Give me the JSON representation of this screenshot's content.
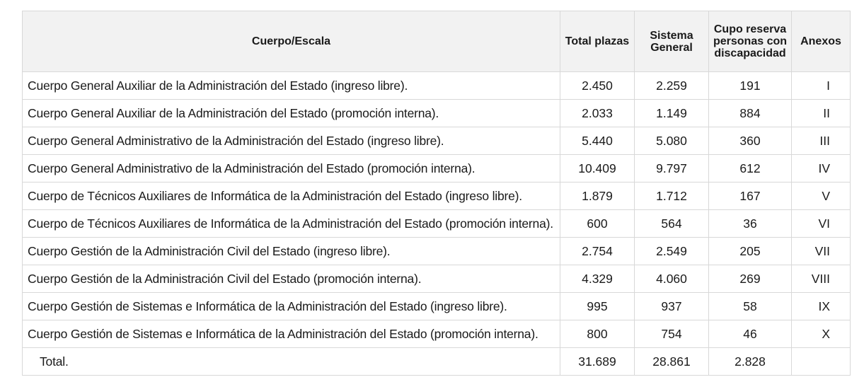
{
  "table": {
    "headers": {
      "cuerpo": "Cuerpo/Escala",
      "total": "Total plazas",
      "sistema": "Sistema General",
      "cupo": "Cupo reserva personas con discapacidad",
      "anexos": "Anexos"
    },
    "rows": [
      {
        "cuerpo": "Cuerpo General Auxiliar de la Administración del Estado (ingreso libre).",
        "total": "2.450",
        "sistema": "2.259",
        "cupo": "191",
        "anexo": "I"
      },
      {
        "cuerpo": "Cuerpo General Auxiliar de la Administración del Estado (promoción interna).",
        "total": "2.033",
        "sistema": "1.149",
        "cupo": "884",
        "anexo": "II"
      },
      {
        "cuerpo": "Cuerpo General Administrativo de la Administración del Estado (ingreso libre).",
        "total": "5.440",
        "sistema": "5.080",
        "cupo": "360",
        "anexo": "III"
      },
      {
        "cuerpo": "Cuerpo General Administrativo de la Administración del Estado (promoción interna).",
        "total": "10.409",
        "sistema": "9.797",
        "cupo": "612",
        "anexo": "IV"
      },
      {
        "cuerpo": "Cuerpo de Técnicos Auxiliares de Informática de la Administración del Estado (ingreso libre).",
        "total": "1.879",
        "sistema": "1.712",
        "cupo": "167",
        "anexo": "V"
      },
      {
        "cuerpo": "Cuerpo de Técnicos Auxiliares de Informática de la Administración del Estado (promoción interna).",
        "total": "600",
        "sistema": "564",
        "cupo": "36",
        "anexo": "VI"
      },
      {
        "cuerpo": "Cuerpo Gestión de la Administración Civil del Estado (ingreso libre).",
        "total": "2.754",
        "sistema": "2.549",
        "cupo": "205",
        "anexo": "VII"
      },
      {
        "cuerpo": "Cuerpo Gestión de la Administración Civil del Estado (promoción interna).",
        "total": "4.329",
        "sistema": "4.060",
        "cupo": "269",
        "anexo": "VIII"
      },
      {
        "cuerpo": "Cuerpo Gestión de Sistemas e Informática de la Administración del Estado (ingreso libre).",
        "total": "995",
        "sistema": "937",
        "cupo": "58",
        "anexo": "IX"
      },
      {
        "cuerpo": "Cuerpo Gestión de Sistemas e Informática de la Administración del Estado (promoción interna).",
        "total": "800",
        "sistema": "754",
        "cupo": "46",
        "anexo": "X"
      }
    ],
    "totals": {
      "label": "Total.",
      "total": "31.689",
      "sistema": "28.861",
      "cupo": "2.828",
      "anexo": ""
    }
  }
}
